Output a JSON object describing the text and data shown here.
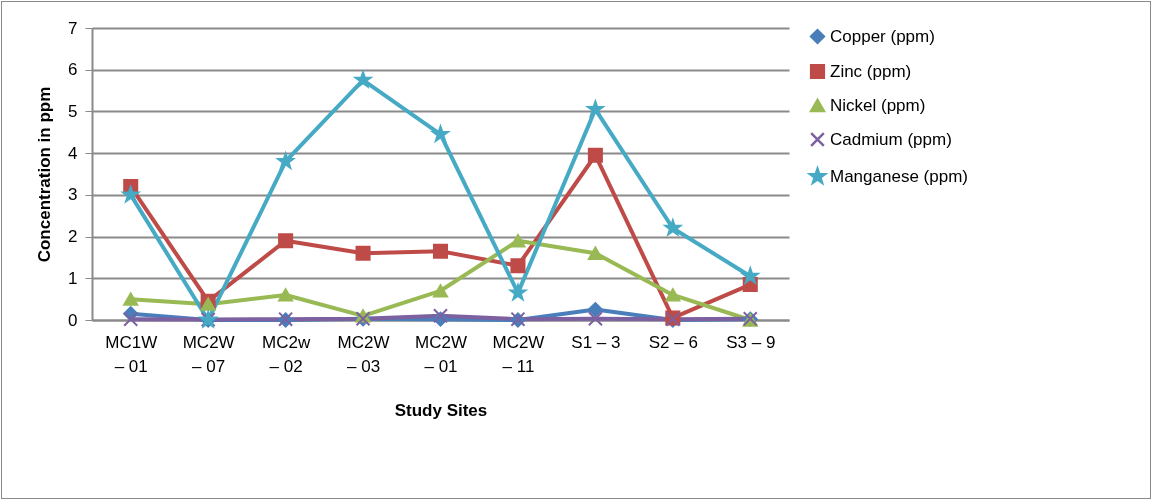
{
  "chart_data": {
    "type": "line",
    "xlabel": "Study Sites",
    "ylabel": "Concentration in ppm",
    "categories": [
      "MC1W – 01",
      "MC2W – 07",
      "MC2w – 02",
      "MC2W – 03",
      "MC2W – 01",
      "MC2W – 11",
      "S1 – 3",
      "S2 – 6",
      "S3 – 9"
    ],
    "series": [
      {
        "name": "Copper (ppm)",
        "color": "#4a7ebb",
        "marker": "diamond",
        "values": [
          0.15,
          0,
          0,
          0.03,
          0.02,
          0,
          0.25,
          0,
          0.02
        ]
      },
      {
        "name": "Zinc (ppm)",
        "color": "#be4b48",
        "marker": "square",
        "values": [
          3.2,
          0.45,
          1.9,
          1.6,
          1.65,
          1.3,
          3.95,
          0.05,
          0.85
        ]
      },
      {
        "name": "Nickel (ppm)",
        "color": "#98b954",
        "marker": "triangle",
        "values": [
          0.5,
          0.38,
          0.6,
          0.1,
          0.7,
          1.9,
          1.6,
          0.6,
          0
        ]
      },
      {
        "name": "Cadmium (ppm)",
        "color": "#7d60a0",
        "marker": "cross",
        "values": [
          0.02,
          0.01,
          0.02,
          0.03,
          0.1,
          0.02,
          0.03,
          0.02,
          0.03
        ]
      },
      {
        "name": "Manganese (ppm)",
        "color": "#46aac5",
        "marker": "star",
        "values": [
          3.0,
          0,
          3.8,
          5.75,
          4.45,
          0.65,
          5.05,
          2.2,
          1.05
        ]
      }
    ],
    "ylim": [
      0,
      7
    ],
    "yticks": [
      0,
      1,
      2,
      3,
      4,
      5,
      6,
      7
    ],
    "grid": "y",
    "legend": "right",
    "line_style": "solid"
  }
}
